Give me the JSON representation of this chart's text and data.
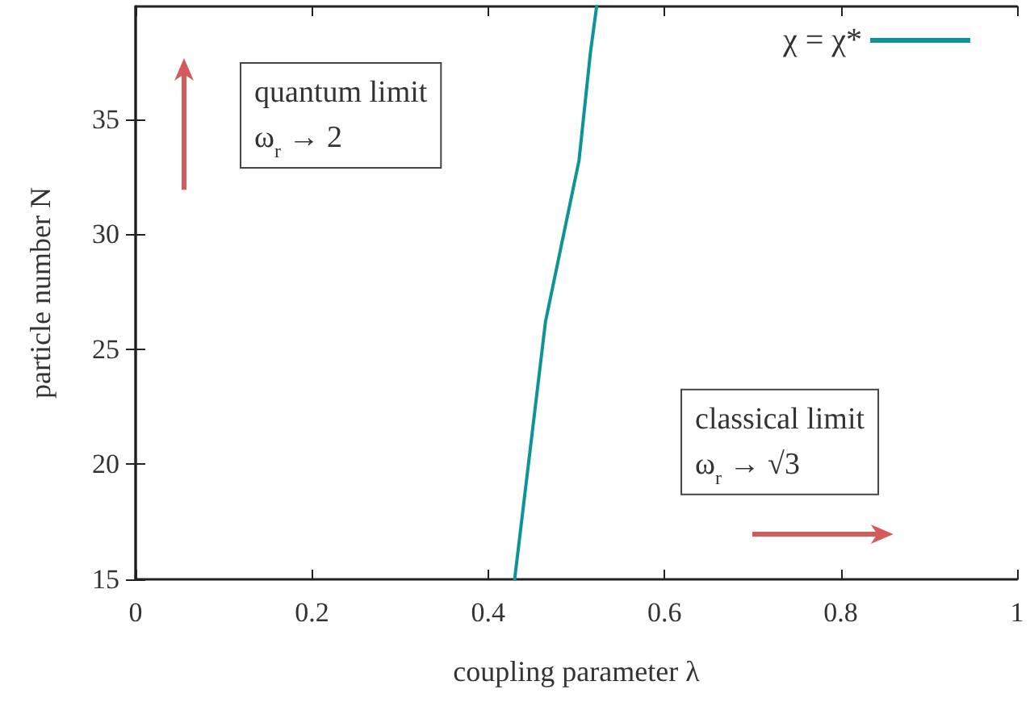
{
  "chart_data": {
    "type": "line",
    "xlabel": "coupling parameter λ",
    "ylabel": "particle number N",
    "x": [
      0.43,
      0.465,
      0.503,
      0.516,
      0.523
    ],
    "series": [
      {
        "name": "χ = χ*",
        "color": "#0e9494",
        "values": [
          15,
          26.2,
          33.2,
          37.9,
          39.9
        ]
      }
    ],
    "xlim": [
      0,
      1
    ],
    "xticks": [
      0,
      0.2,
      0.4,
      0.6,
      0.8,
      1
    ],
    "ylim": [
      15,
      39.9
    ],
    "yticks": [
      15,
      20,
      25,
      30,
      35
    ],
    "annotations": [
      "quantum limit\nω$_{r}$ → 2",
      "classical limit\nω$_{r}$ → √3"
    ],
    "grid": false,
    "legend": "top right",
    "marker": "none",
    "line_style": "solid"
  }
}
